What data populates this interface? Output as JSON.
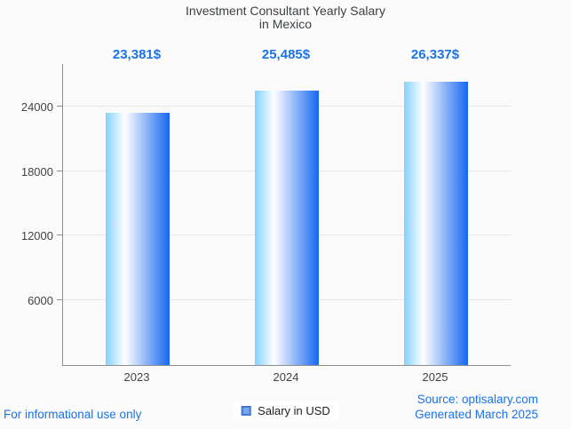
{
  "title": {
    "line1": "Investment Consultant Yearly Salary",
    "line2": "in Mexico"
  },
  "chart_data": {
    "type": "bar",
    "title": "Investment Consultant Yearly Salary in Mexico",
    "categories": [
      "2023",
      "2024",
      "2025"
    ],
    "series": [
      {
        "name": "Salary in USD",
        "values": [
          23381,
          25485,
          26337
        ]
      }
    ],
    "value_labels": [
      "23,381$",
      "25,485$",
      "26,337$"
    ],
    "xlabel": "",
    "ylabel": "",
    "y_ticks": [
      6000,
      12000,
      18000,
      24000
    ],
    "ylim": [
      0,
      27950
    ],
    "grid": true,
    "legend_position": "bottom",
    "bar_gradient": [
      "#84D0FE",
      "#FFFFFF",
      "#1566F1"
    ]
  },
  "legend": {
    "label": "Salary in USD"
  },
  "footer": {
    "left": "For informational use only",
    "source": "Source: optisalary.com",
    "generated": "Generated March 2025"
  },
  "colors": {
    "accent": "#1a73e8",
    "title": "#3c4043",
    "axis": "#8f8f8f",
    "grid": "#e7e7e7",
    "tick_label": "#444444",
    "background": "#fbfbfb",
    "legend_fill": "#7DA7EC",
    "legend_border": "#4478D2"
  }
}
